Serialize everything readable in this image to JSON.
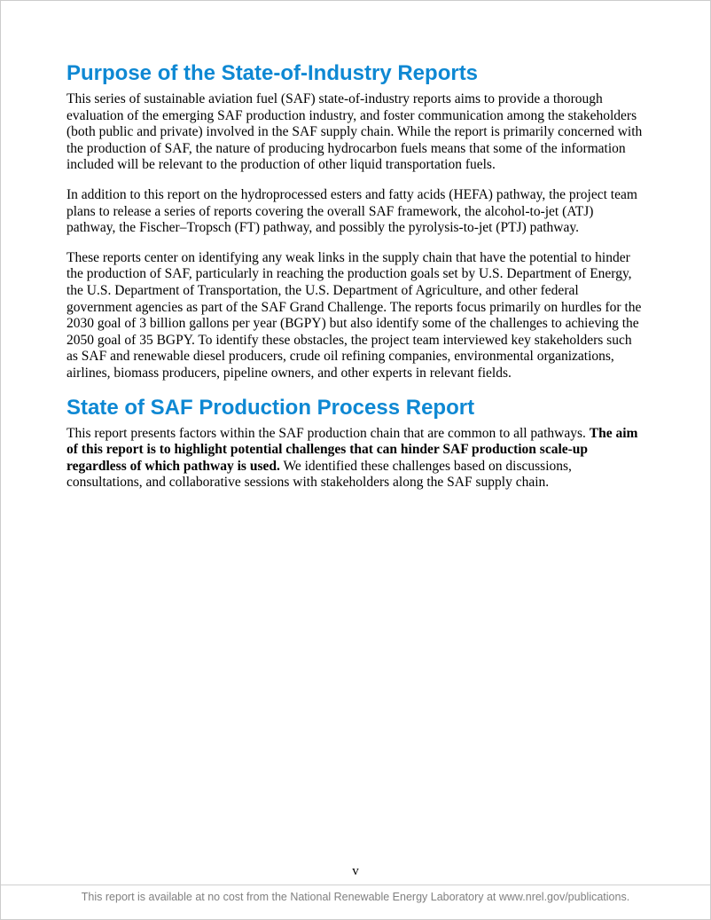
{
  "section1": {
    "heading": "Purpose of the State-of-Industry Reports",
    "para1": "This series of sustainable aviation fuel (SAF) state-of-industry reports aims to provide a thorough evaluation of the emerging SAF production industry, and foster communication among the stakeholders (both public and private) involved in the SAF supply chain. While the report is primarily concerned with the production of SAF, the nature of producing hydrocarbon fuels means that some of the information included will be relevant to the production of other liquid transportation fuels.",
    "para2": "In addition to this report on the hydroprocessed esters and fatty acids (HEFA) pathway, the project team plans to release a series of reports covering the overall SAF framework, the alcohol-to-jet (ATJ) pathway, the Fischer–Tropsch (FT) pathway, and possibly the pyrolysis-to-jet (PTJ) pathway.",
    "para3": "These reports center on identifying any weak links in the supply chain that have the potential to hinder the production of SAF, particularly in reaching the production goals set by U.S. Department of Energy, the U.S. Department of Transportation, the U.S. Department of Agriculture, and other federal government agencies as part of the SAF Grand Challenge. The reports focus primarily on hurdles for the 2030 goal of 3 billion gallons per year (BGPY) but also identify some of the challenges to achieving the 2050 goal of 35 BGPY. To identify these obstacles, the project team interviewed key stakeholders such as SAF and renewable diesel producers, crude oil refining companies, environmental organizations, airlines, biomass producers, pipeline owners, and other experts in relevant fields."
  },
  "section2": {
    "heading": "State of SAF Production Process Report",
    "para1_prefix": "This report presents factors within the SAF production chain that are common to all pathways. ",
    "para1_bold": "The aim of this report is to highlight potential challenges that can hinder SAF production scale-up regardless of which pathway is used.",
    "para1_suffix": " We identified these challenges based on discussions, consultations, and collaborative sessions with stakeholders along the SAF supply chain."
  },
  "pageNumber": "v",
  "footer": "This report is available at no cost from the National Renewable Energy Laboratory at www.nrel.gov/publications."
}
